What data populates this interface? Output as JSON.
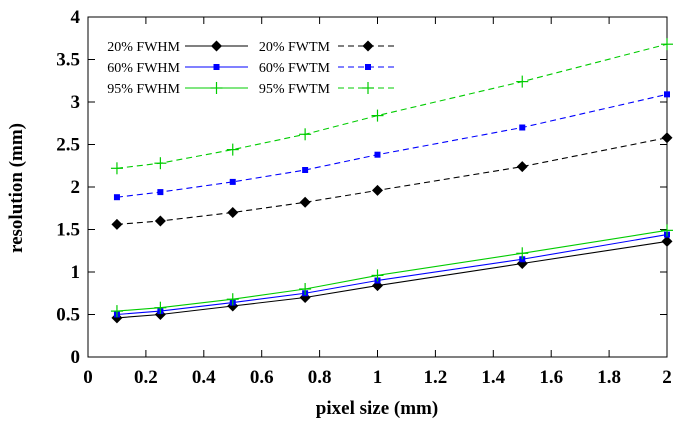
{
  "chart_data": {
    "type": "line",
    "xlabel": "pixel size (mm)",
    "ylabel": "resolution (mm)",
    "xlim": [
      0,
      2
    ],
    "ylim": [
      0,
      4
    ],
    "xticks": [
      "0",
      "0.2",
      "0.4",
      "0.6",
      "0.8",
      "1",
      "1.2",
      "1.4",
      "1.6",
      "1.8",
      "2"
    ],
    "yticks": [
      "0",
      "0.5",
      "1",
      "1.5",
      "2",
      "2.5",
      "3",
      "3.5",
      "4"
    ],
    "grid": false,
    "legend_position": "top-left",
    "x": [
      0.1,
      0.25,
      0.5,
      0.75,
      1.0,
      1.5,
      2.0
    ],
    "series": [
      {
        "name": "20% FWHM",
        "color": "#000000",
        "style": "solid",
        "marker": "diamond",
        "values": [
          0.46,
          0.5,
          0.6,
          0.7,
          0.84,
          1.1,
          1.36
        ]
      },
      {
        "name": "20% FWTM",
        "color": "#000000",
        "style": "dashed",
        "marker": "diamond",
        "values": [
          1.56,
          1.6,
          1.7,
          1.82,
          1.96,
          2.24,
          2.58
        ]
      },
      {
        "name": "60% FWHM",
        "color": "#0000ff",
        "style": "solid",
        "marker": "square",
        "values": [
          0.5,
          0.54,
          0.64,
          0.75,
          0.9,
          1.15,
          1.44
        ]
      },
      {
        "name": "60% FWTM",
        "color": "#0000ff",
        "style": "dashed",
        "marker": "square",
        "values": [
          1.88,
          1.94,
          2.06,
          2.2,
          2.38,
          2.7,
          3.09
        ]
      },
      {
        "name": "95% FWHM",
        "color": "#00cc00",
        "style": "solid",
        "marker": "plus",
        "values": [
          0.54,
          0.58,
          0.68,
          0.8,
          0.96,
          1.22,
          1.49
        ]
      },
      {
        "name": "95% FWTM",
        "color": "#00cc00",
        "style": "dashed",
        "marker": "plus",
        "values": [
          2.22,
          2.28,
          2.44,
          2.62,
          2.84,
          3.24,
          3.68
        ]
      }
    ]
  }
}
